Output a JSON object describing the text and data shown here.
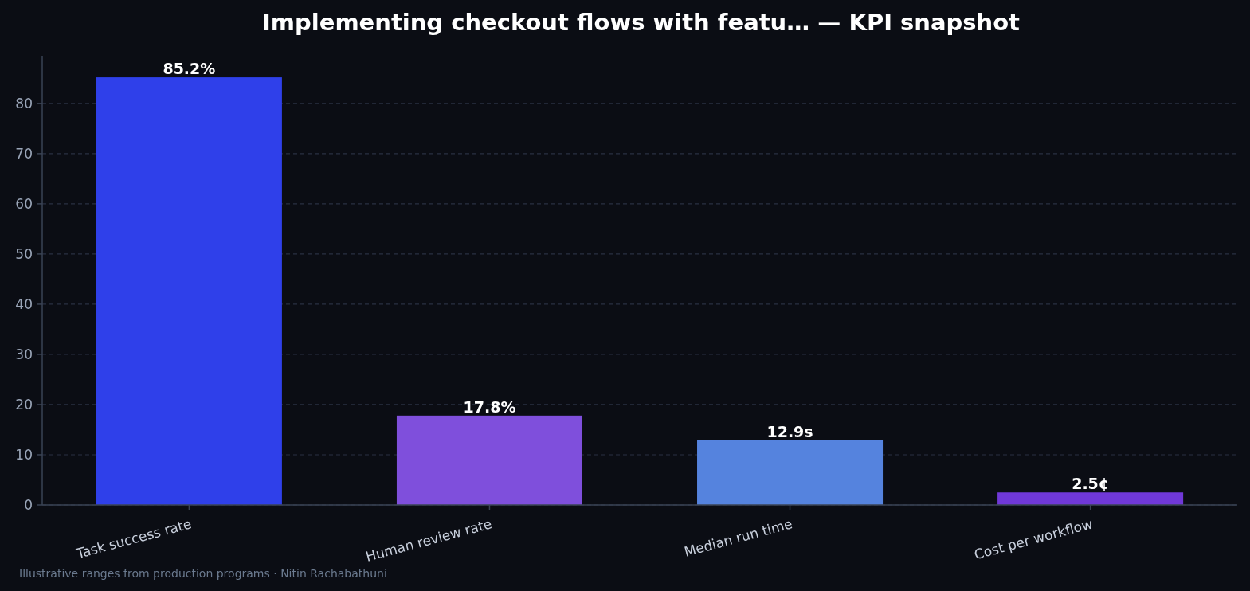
{
  "chart_data": {
    "type": "bar",
    "title": "Implementing checkout flows with featu… — KPI snapshot",
    "categories": [
      "Task success rate",
      "Human review rate",
      "Median run time",
      "Cost per workflow"
    ],
    "values": [
      85.2,
      17.8,
      12.9,
      2.5
    ],
    "colors": [
      "#2f40ea",
      "#7f4fdc",
      "#5583de",
      "#7038d8"
    ],
    "value_labels": [
      "85.2%",
      "17.8%",
      "12.9s",
      "2.5¢"
    ],
    "ylim": [
      0,
      89.5
    ],
    "yticks": [
      0,
      10,
      20,
      30,
      40,
      50,
      60,
      70,
      80
    ],
    "grid": "y",
    "annotations": [
      "Illustrative ranges from production programs · Nitin Rachabathuni"
    ]
  }
}
